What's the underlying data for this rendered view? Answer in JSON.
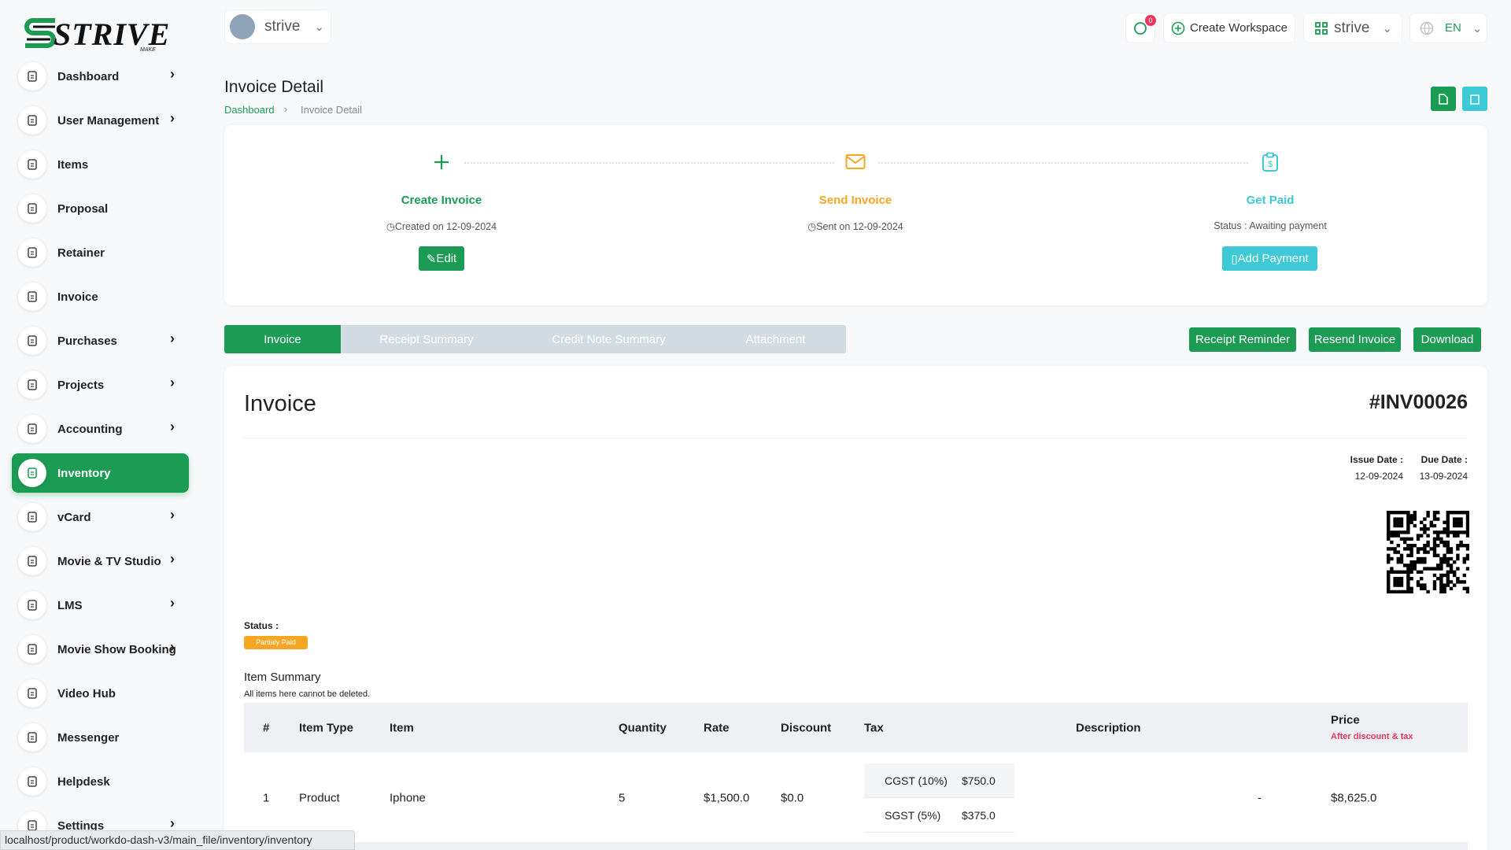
{
  "brand": {
    "name": "STRIVE",
    "tagline": "MAKE"
  },
  "sidebar": {
    "items": [
      {
        "label": "Dashboard",
        "has_children": true
      },
      {
        "label": "User Management",
        "has_children": true
      },
      {
        "label": "Items",
        "has_children": false
      },
      {
        "label": "Proposal",
        "has_children": false
      },
      {
        "label": "Retainer",
        "has_children": false
      },
      {
        "label": "Invoice",
        "has_children": false
      },
      {
        "label": "Purchases",
        "has_children": true
      },
      {
        "label": "Projects",
        "has_children": true
      },
      {
        "label": "Accounting",
        "has_children": true
      },
      {
        "label": "Inventory",
        "has_children": false,
        "active": true
      },
      {
        "label": "vCard",
        "has_children": true
      },
      {
        "label": "Movie & TV Studio",
        "has_children": true
      },
      {
        "label": "LMS",
        "has_children": true
      },
      {
        "label": "Movie Show Booking",
        "has_children": true
      },
      {
        "label": "Video Hub",
        "has_children": false
      },
      {
        "label": "Messenger",
        "has_children": false
      },
      {
        "label": "Helpdesk",
        "has_children": false
      },
      {
        "label": "Settings",
        "has_children": true
      }
    ]
  },
  "topbar": {
    "workspace": "strive",
    "notification_count": "0",
    "create_workspace": "Create Workspace",
    "workspace_switcher": "strive",
    "language": "EN"
  },
  "page": {
    "title": "Invoice Detail",
    "breadcrumb": [
      "Dashboard",
      "Invoice Detail"
    ]
  },
  "steps": [
    {
      "title": "Create Invoice",
      "note": "Created on 12-09-2024",
      "button": "Edit"
    },
    {
      "title": "Send Invoice",
      "note": "Sent on 12-09-2024"
    },
    {
      "title": "Get Paid",
      "note": "Status : Awaiting payment",
      "button": "Add Payment"
    }
  ],
  "tabs": [
    "Invoice",
    "Receipt Summary",
    "Credit Note Summary",
    "Attachment"
  ],
  "actions": [
    "Receipt Reminder",
    "Resend Invoice",
    "Download"
  ],
  "invoice": {
    "heading": "Invoice",
    "number": "#INV00026",
    "issue_date_label": "Issue Date :",
    "issue_date": "12-09-2024",
    "due_date_label": "Due Date :",
    "due_date": "13-09-2024",
    "status_label": "Status :",
    "status": "Partialy Paid",
    "item_summary": "Item Summary",
    "item_note": "All items here cannot be deleted."
  },
  "table": {
    "headers": [
      "#",
      "Item Type",
      "Item",
      "Quantity",
      "Rate",
      "Discount",
      "Tax",
      "Description",
      "Price"
    ],
    "price_note": "After discount & tax",
    "rows": [
      {
        "no": "1",
        "type": "Product",
        "item": "Iphone",
        "quantity": "5",
        "rate": "$1,500.0",
        "discount": "$0.0",
        "taxes": [
          {
            "name": "CGST (10%)",
            "amount": "$750.0"
          },
          {
            "name": "SGST (5%)",
            "amount": "$375.0"
          }
        ],
        "description": "-",
        "price": "$8,625.0"
      }
    ]
  },
  "status_bar": "localhost/product/workdo-dash-v3/main_file/inventory/inventory"
}
